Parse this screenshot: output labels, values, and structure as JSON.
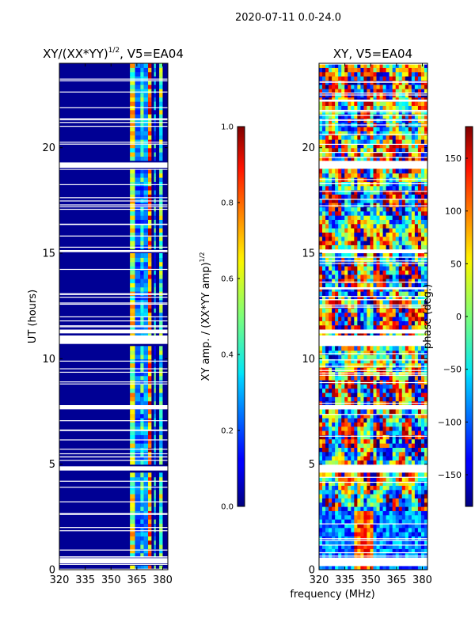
{
  "suptitle": "2020-07-11 0.0-24.0",
  "shared_xlabel": "frequency (MHz)",
  "chart_data": [
    {
      "type": "heatmap",
      "title": "XY/(XX*YY)^{1/2}, V5=EA04",
      "title_main": "XY/(XX*YY)",
      "title_sup": "1/2",
      "title_tail": ", V5=EA04",
      "xlabel": "frequency (MHz)",
      "ylabel": "UT (hours)",
      "xlim": [
        320,
        383
      ],
      "ylim": [
        0,
        24
      ],
      "xticks": [
        320,
        335,
        350,
        365,
        380
      ],
      "yticks": [
        0,
        5,
        10,
        15,
        20
      ],
      "colorbar": {
        "label": "XY amp. / (XX*YY amp)^{1/2}",
        "label_main": "XY amp. / (XX*YY amp)",
        "label_sup": "1/2",
        "vmin": 0.0,
        "vmax": 1.0,
        "ticks": [
          "0.0",
          "0.2",
          "0.4",
          "0.6",
          "0.8",
          "1.0"
        ],
        "colormap": "jet"
      },
      "background_value": 0.02,
      "rfi_bands_mhz": [
        [
          361,
          364
        ],
        [
          367,
          369
        ],
        [
          371.5,
          373.5
        ],
        [
          375,
          376
        ],
        [
          378,
          380
        ]
      ],
      "rfi_band_values": [
        0.55,
        0.35,
        0.75,
        0.3,
        0.45
      ],
      "gaps_hours": [
        [
          0.3,
          0.55
        ],
        [
          4.7,
          4.9
        ],
        [
          7.6,
          7.8
        ],
        [
          10.7,
          11.1
        ],
        [
          11.2,
          11.35
        ],
        [
          15.05,
          15.15
        ],
        [
          19.05,
          19.3
        ]
      ]
    },
    {
      "type": "heatmap",
      "title": "XY, V5=EA04",
      "xlabel": "frequency (MHz)",
      "ylabel": "",
      "xlim": [
        320,
        383
      ],
      "ylim": [
        0,
        24
      ],
      "xticks": [
        320,
        335,
        350,
        365,
        380
      ],
      "yticks": [
        0,
        5,
        10,
        15,
        20
      ],
      "colorbar": {
        "label": "phase (deg.)",
        "vmin": -180,
        "vmax": 180,
        "ticks": [
          "−150",
          "−100",
          "−50",
          "0",
          "50",
          "100",
          "150"
        ],
        "tick_values": [
          -150,
          -100,
          -50,
          0,
          50,
          100,
          150
        ],
        "colormap": "jet"
      },
      "gaps_hours": [
        [
          0.3,
          0.55
        ],
        [
          4.7,
          4.9
        ],
        [
          7.6,
          7.8
        ],
        [
          10.7,
          11.1
        ],
        [
          11.2,
          11.35
        ],
        [
          15.05,
          15.15
        ],
        [
          19.05,
          19.3
        ]
      ]
    }
  ]
}
